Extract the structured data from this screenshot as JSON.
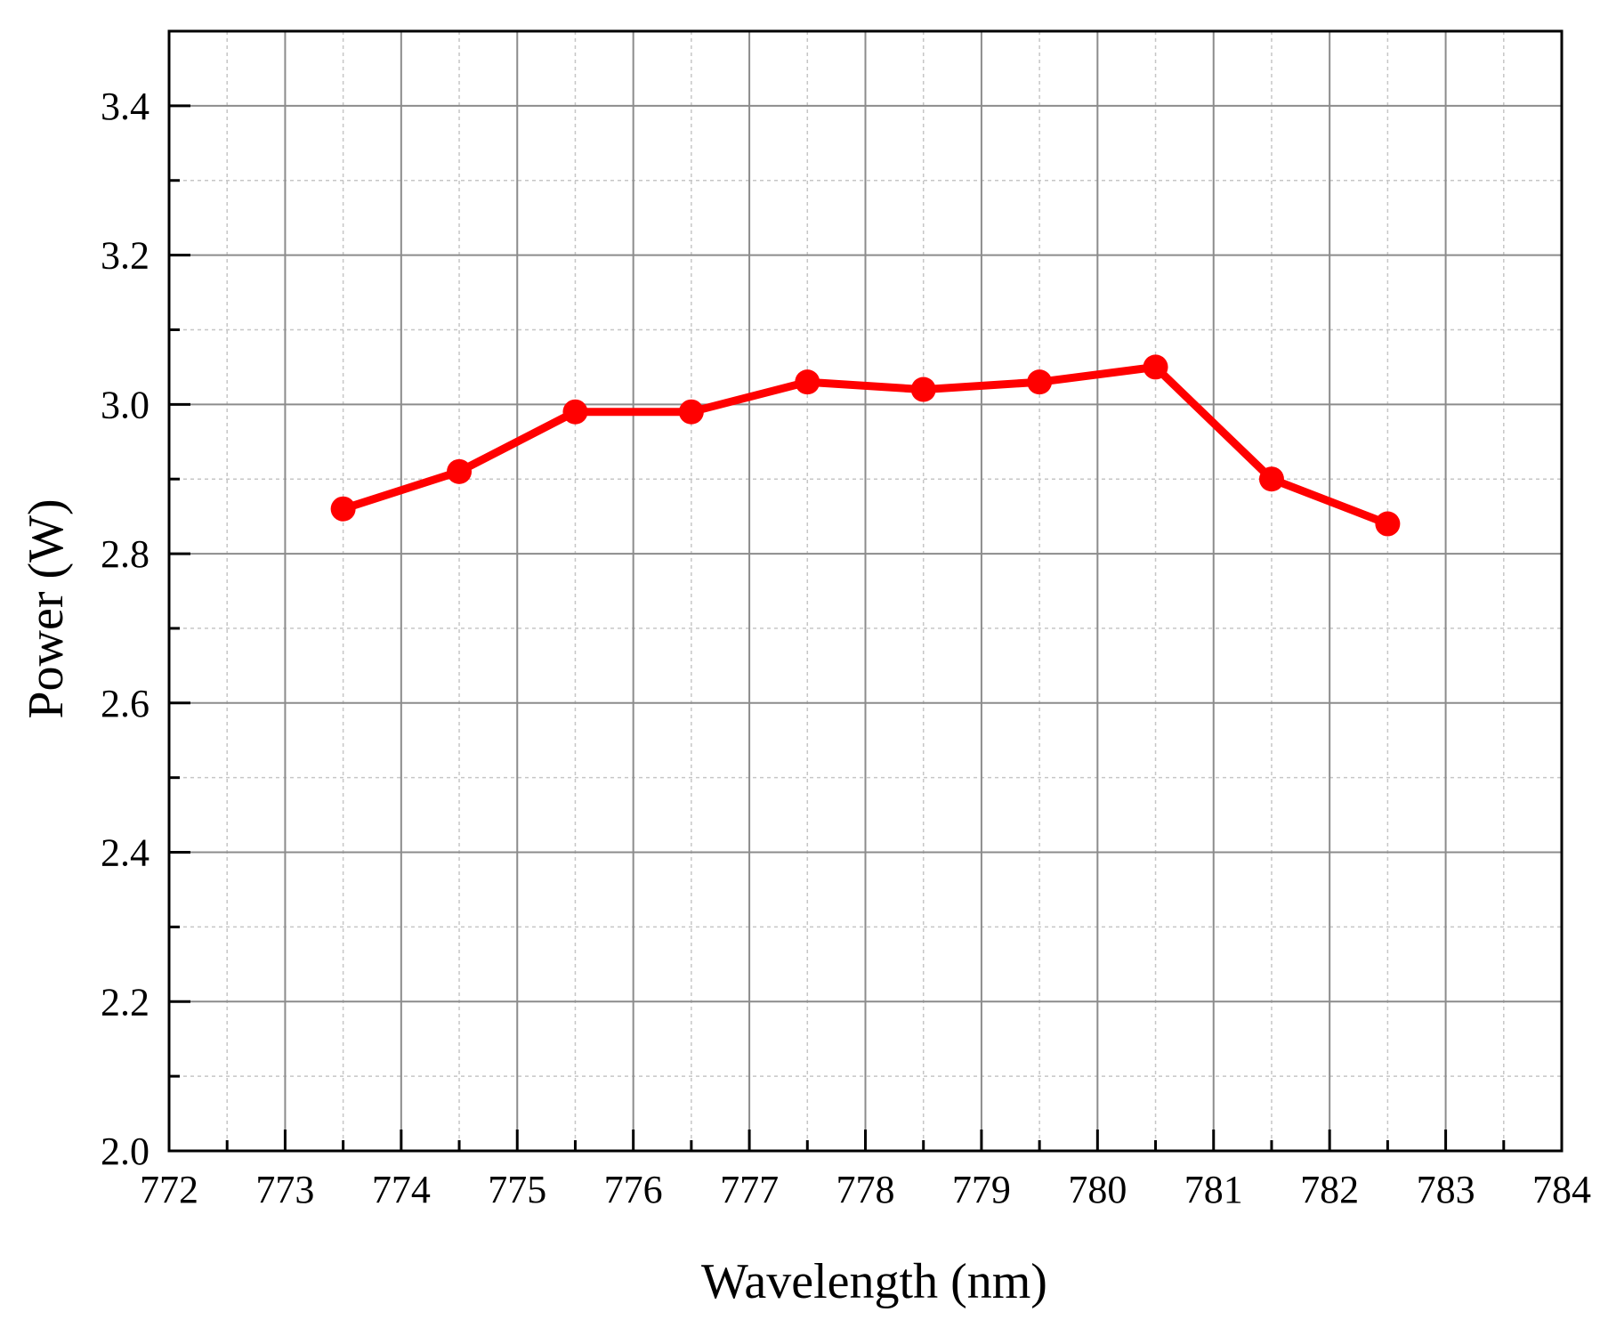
{
  "chart_data": {
    "type": "line",
    "title": "",
    "xlabel": "Wavelength (nm)",
    "ylabel": "Power (W)",
    "xlim": [
      772,
      784
    ],
    "ylim": [
      2.0,
      3.5
    ],
    "x_ticks": [
      "772",
      "773",
      "774",
      "775",
      "776",
      "777",
      "778",
      "779",
      "780",
      "781",
      "782",
      "783",
      "784"
    ],
    "y_ticks": [
      "2.0",
      "2.2",
      "2.4",
      "2.6",
      "2.8",
      "3.0",
      "3.2",
      "3.4"
    ],
    "grid": true,
    "legend": "none",
    "series": [
      {
        "color": "#ff0000",
        "marker": "circle",
        "x": [
          773.5,
          774.5,
          775.5,
          776.5,
          777.5,
          778.5,
          779.5,
          780.5,
          781.5,
          782.5
        ],
        "y": [
          2.86,
          2.91,
          2.99,
          2.99,
          3.03,
          3.02,
          3.03,
          3.05,
          2.9,
          2.84
        ]
      }
    ]
  }
}
